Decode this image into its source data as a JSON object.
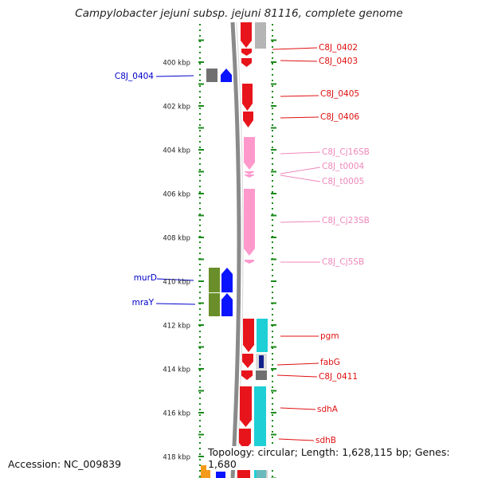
{
  "title": "Campylobacter jejuni subsp. jejuni 81116, complete genome",
  "footer": {
    "accession": "Accession: NC_009839",
    "topology": "Topology: circular; Length: 1,628,115 bp; Genes: 1,680"
  },
  "axis_labels": [
    {
      "label": "400 kbp",
      "kbp": 400
    },
    {
      "label": "402 kbp",
      "kbp": 402
    },
    {
      "label": "404 kbp",
      "kbp": 404
    },
    {
      "label": "406 kbp",
      "kbp": 406
    },
    {
      "label": "408 kbp",
      "kbp": 408
    },
    {
      "label": "410 kbp",
      "kbp": 410
    },
    {
      "label": "412 kbp",
      "kbp": 412
    },
    {
      "label": "414 kbp",
      "kbp": 414
    },
    {
      "label": "416 kbp",
      "kbp": 416
    },
    {
      "label": "418 kbp",
      "kbp": 418
    }
  ],
  "colors": {
    "cds": "#e8141b",
    "rna": "#ff99cc",
    "cog_gray": "#b5b5b5",
    "cog_dark_gray": "#707070",
    "cog_blue": "#0a14ff",
    "cog_green": "#6a8f2a",
    "cog_cyan": "#1ecfd6",
    "cog_navy": "#101f8c",
    "cog_orange": "#f49b19",
    "backbone": "#8a8a8a",
    "tick": "#1a8a1a"
  },
  "genes": [
    {
      "label": "C8J_0402",
      "kbp_start": 399.15,
      "kbp_end": 399.9,
      "type": "cds"
    },
    {
      "label": "C8J_0403",
      "kbp_start": 399.9,
      "kbp_end": 400.15,
      "type": "cds"
    },
    {
      "label": "C8J_0404",
      "kbp_start": 400.2,
      "kbp_end": 400.6,
      "type": "cds"
    },
    {
      "label": "C8J_0405",
      "kbp_start": 400.95,
      "kbp_end": 402.15,
      "type": "cds"
    },
    {
      "label": "C8J_0406",
      "kbp_start": 402.15,
      "kbp_end": 402.85,
      "type": "cds"
    },
    {
      "label": "C8J_Cj16SB",
      "kbp_start": 403.55,
      "kbp_end": 404.95,
      "type": "rna"
    },
    {
      "label": "C8J_t0004",
      "kbp_start": 405.0,
      "kbp_end": 405.08,
      "type": "rna"
    },
    {
      "label": "C8J_t0005",
      "kbp_start": 405.1,
      "kbp_end": 405.2,
      "type": "rna"
    },
    {
      "label": "C8J_Cj23SB",
      "kbp_start": 405.8,
      "kbp_end": 408.75,
      "type": "rna"
    },
    {
      "label": "C8J_Cj5SB",
      "kbp_start": 408.8,
      "kbp_end": 409.0,
      "type": "rna"
    },
    {
      "label": "murD",
      "kbp_start": 409.35,
      "kbp_end": 410.6,
      "type": "cds"
    },
    {
      "label": "mraY",
      "kbp_start": 410.6,
      "kbp_end": 411.6,
      "type": "cds"
    },
    {
      "label": "pgm",
      "kbp_start": 411.95,
      "kbp_end": 413.45,
      "type": "cds"
    },
    {
      "label": "fabG",
      "kbp_start": 413.45,
      "kbp_end": 414.2,
      "type": "cds"
    },
    {
      "label": "C8J_0411",
      "kbp_start": 414.2,
      "kbp_end": 414.55,
      "type": "cds"
    },
    {
      "label": "sdhA",
      "kbp_start": 414.7,
      "kbp_end": 416.5,
      "type": "cds"
    },
    {
      "label": "sdhB",
      "kbp_start": 416.5,
      "kbp_end": 417.4,
      "type": "cds"
    }
  ]
}
